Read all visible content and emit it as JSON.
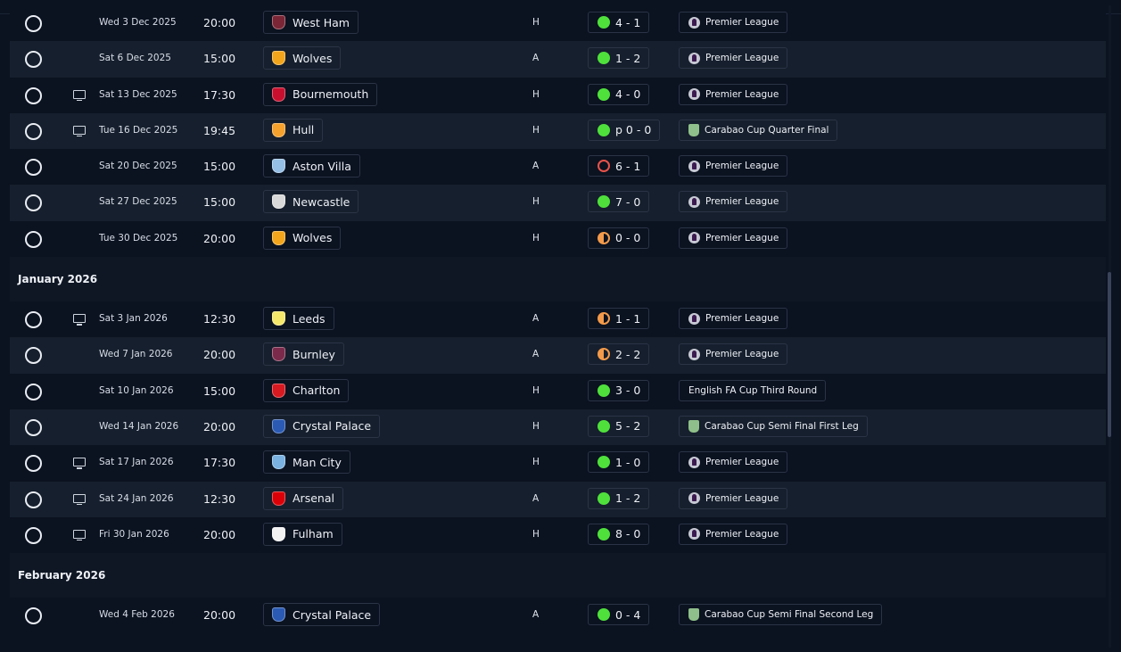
{
  "icons": {
    "played": "circle-outline-icon",
    "tv": "tv-icon",
    "win": "green-dot-icon",
    "draw": "half-orange-dot-icon",
    "loss": "red-ring-icon",
    "premier_league": "premier-league-logo",
    "carabao": "carabao-cup-logo"
  },
  "colors": {
    "background": "#0b1220",
    "row_alt": "#161f2d",
    "win": "#4fe03c",
    "draw": "#f39a4a",
    "loss": "#e8534a"
  },
  "sections": [
    {
      "month": "",
      "fixtures": [
        {
          "tv": false,
          "date": "Wed 3 Dec 2025",
          "time": "20:00",
          "team": "West Ham",
          "crest": "#7a2636",
          "venue": "H",
          "result": "win",
          "score": "4 - 1",
          "competition": "Premier League",
          "comp_icon": "pl"
        },
        {
          "tv": false,
          "date": "Sat 6 Dec 2025",
          "time": "15:00",
          "team": "Wolves",
          "crest": "#f2a51c",
          "venue": "A",
          "result": "win",
          "score": "1 - 2",
          "competition": "Premier League",
          "comp_icon": "pl"
        },
        {
          "tv": true,
          "date": "Sat 13 Dec 2025",
          "time": "17:30",
          "team": "Bournemouth",
          "crest": "#c8102e",
          "venue": "H",
          "result": "win",
          "score": "4 - 0",
          "competition": "Premier League",
          "comp_icon": "pl"
        },
        {
          "tv": true,
          "date": "Tue 16 Dec 2025",
          "time": "19:45",
          "team": "Hull",
          "crest": "#f5a12d",
          "venue": "H",
          "result": "win",
          "score": "p 0 - 0",
          "competition": "Carabao Cup Quarter Final",
          "comp_icon": "cup"
        },
        {
          "tv": false,
          "date": "Sat 20 Dec 2025",
          "time": "15:00",
          "team": "Aston Villa",
          "crest": "#95bfe5",
          "venue": "A",
          "result": "loss",
          "score": "6 - 1",
          "competition": "Premier League",
          "comp_icon": "pl"
        },
        {
          "tv": false,
          "date": "Sat 27 Dec 2025",
          "time": "15:00",
          "team": "Newcastle",
          "crest": "#d9d9d9",
          "venue": "H",
          "result": "win",
          "score": "7 - 0",
          "competition": "Premier League",
          "comp_icon": "pl"
        },
        {
          "tv": false,
          "date": "Tue 30 Dec 2025",
          "time": "20:00",
          "team": "Wolves",
          "crest": "#f2a51c",
          "venue": "H",
          "result": "draw",
          "score": "0 - 0",
          "competition": "Premier League",
          "comp_icon": "pl"
        }
      ]
    },
    {
      "month": "January 2026",
      "fixtures": [
        {
          "tv": true,
          "date": "Sat 3 Jan 2026",
          "time": "12:30",
          "team": "Leeds",
          "crest": "#f4e76a",
          "venue": "A",
          "result": "draw",
          "score": "1 - 1",
          "competition": "Premier League",
          "comp_icon": "pl"
        },
        {
          "tv": false,
          "date": "Wed 7 Jan 2026",
          "time": "20:00",
          "team": "Burnley",
          "crest": "#7c2a4c",
          "venue": "A",
          "result": "draw",
          "score": "2 - 2",
          "competition": "Premier League",
          "comp_icon": "pl"
        },
        {
          "tv": false,
          "date": "Sat 10 Jan 2026",
          "time": "15:00",
          "team": "Charlton",
          "crest": "#d71921",
          "venue": "H",
          "result": "win",
          "score": "3 - 0",
          "competition": "English FA Cup Third Round",
          "comp_icon": ""
        },
        {
          "tv": false,
          "date": "Wed 14 Jan 2026",
          "time": "20:00",
          "team": "Crystal Palace",
          "crest": "#2a5ab3",
          "venue": "H",
          "result": "win",
          "score": "5 - 2",
          "competition": "Carabao Cup Semi Final First Leg",
          "comp_icon": "cup"
        },
        {
          "tv": true,
          "date": "Sat 17 Jan 2026",
          "time": "17:30",
          "team": "Man City",
          "crest": "#7ab2e1",
          "venue": "H",
          "result": "win",
          "score": "1 - 0",
          "competition": "Premier League",
          "comp_icon": "pl"
        },
        {
          "tv": true,
          "date": "Sat 24 Jan 2026",
          "time": "12:30",
          "team": "Arsenal",
          "crest": "#db0007",
          "venue": "A",
          "result": "win",
          "score": "1 - 2",
          "competition": "Premier League",
          "comp_icon": "pl"
        },
        {
          "tv": true,
          "date": "Fri 30 Jan 2026",
          "time": "20:00",
          "team": "Fulham",
          "crest": "#f2f2f2",
          "venue": "H",
          "result": "win",
          "score": "8 - 0",
          "competition": "Premier League",
          "comp_icon": "pl"
        }
      ]
    },
    {
      "month": "February 2026",
      "fixtures": [
        {
          "tv": false,
          "date": "Wed 4 Feb 2026",
          "time": "20:00",
          "team": "Crystal Palace",
          "crest": "#2a5ab3",
          "venue": "A",
          "result": "win",
          "score": "0 - 4",
          "competition": "Carabao Cup Semi Final Second Leg",
          "comp_icon": "cup"
        }
      ]
    }
  ]
}
